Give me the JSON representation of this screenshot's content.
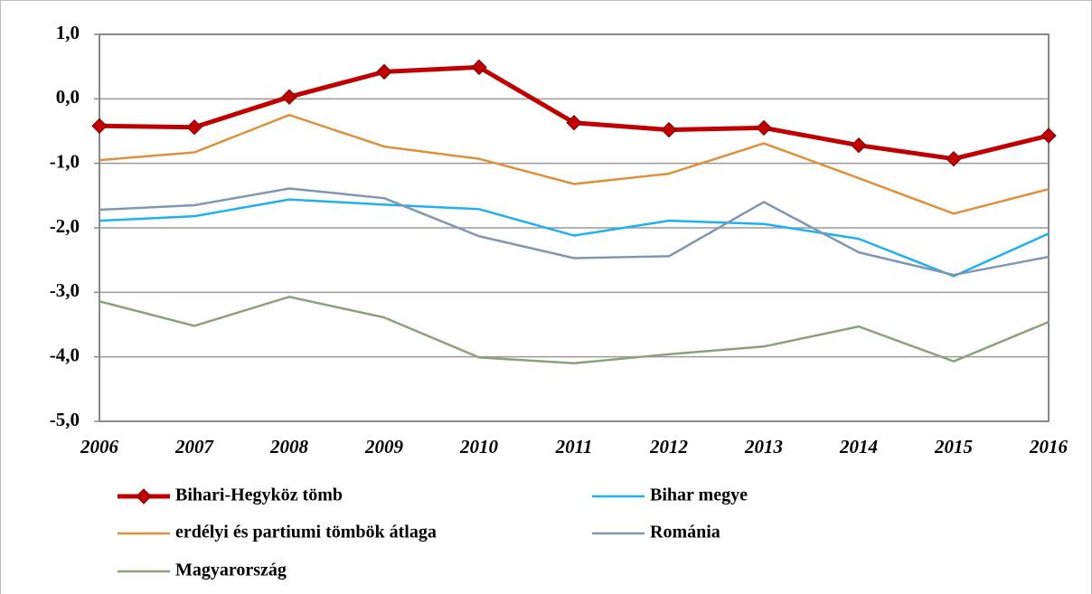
{
  "chart_data": {
    "type": "line",
    "categories": [
      "2006",
      "2007",
      "2008",
      "2009",
      "2010",
      "2011",
      "2012",
      "2013",
      "2014",
      "2015",
      "2016"
    ],
    "series": [
      {
        "name": "Bihari-Hegyköz tömb",
        "color": "#c00000",
        "marker": "diamond",
        "values": [
          -0.42,
          -0.44,
          0.03,
          0.42,
          0.49,
          -0.37,
          -0.48,
          -0.45,
          -0.72,
          -0.93,
          -0.57
        ]
      },
      {
        "name": "Bihar megye",
        "color": "#1fb0f0",
        "values": [
          -1.89,
          -1.82,
          -1.56,
          -1.64,
          -1.71,
          -2.12,
          -1.89,
          -1.94,
          -2.17,
          -2.75,
          -2.09
        ]
      },
      {
        "name": "erdélyi és partiumi tömbök átlaga",
        "color": "#e0903a",
        "values": [
          -0.95,
          -0.83,
          -0.25,
          -0.74,
          -0.93,
          -1.32,
          -1.16,
          -0.69,
          -1.23,
          -1.78,
          -1.4
        ]
      },
      {
        "name": "Románia",
        "color": "#7f97b2",
        "values": [
          -1.72,
          -1.65,
          -1.39,
          -1.54,
          -2.13,
          -2.47,
          -2.44,
          -1.6,
          -2.38,
          -2.73,
          -2.45
        ]
      },
      {
        "name": "Magyarország",
        "color": "#8aa27a",
        "values": [
          -3.14,
          -3.52,
          -3.07,
          -3.39,
          -4.01,
          -4.1,
          -3.96,
          -3.84,
          -3.53,
          -4.07,
          -3.46
        ]
      }
    ],
    "ylim": [
      -5,
      1
    ],
    "yticks": [
      {
        "value": 1,
        "label": "1,0"
      },
      {
        "value": 0,
        "label": "0,0"
      },
      {
        "value": -1,
        "label": "-1,0"
      },
      {
        "value": -2,
        "label": "-2,0"
      },
      {
        "value": -3,
        "label": "-3,0"
      },
      {
        "value": -4,
        "label": "-4,0"
      },
      {
        "value": -5,
        "label": "-5,0"
      }
    ],
    "grid": true
  }
}
